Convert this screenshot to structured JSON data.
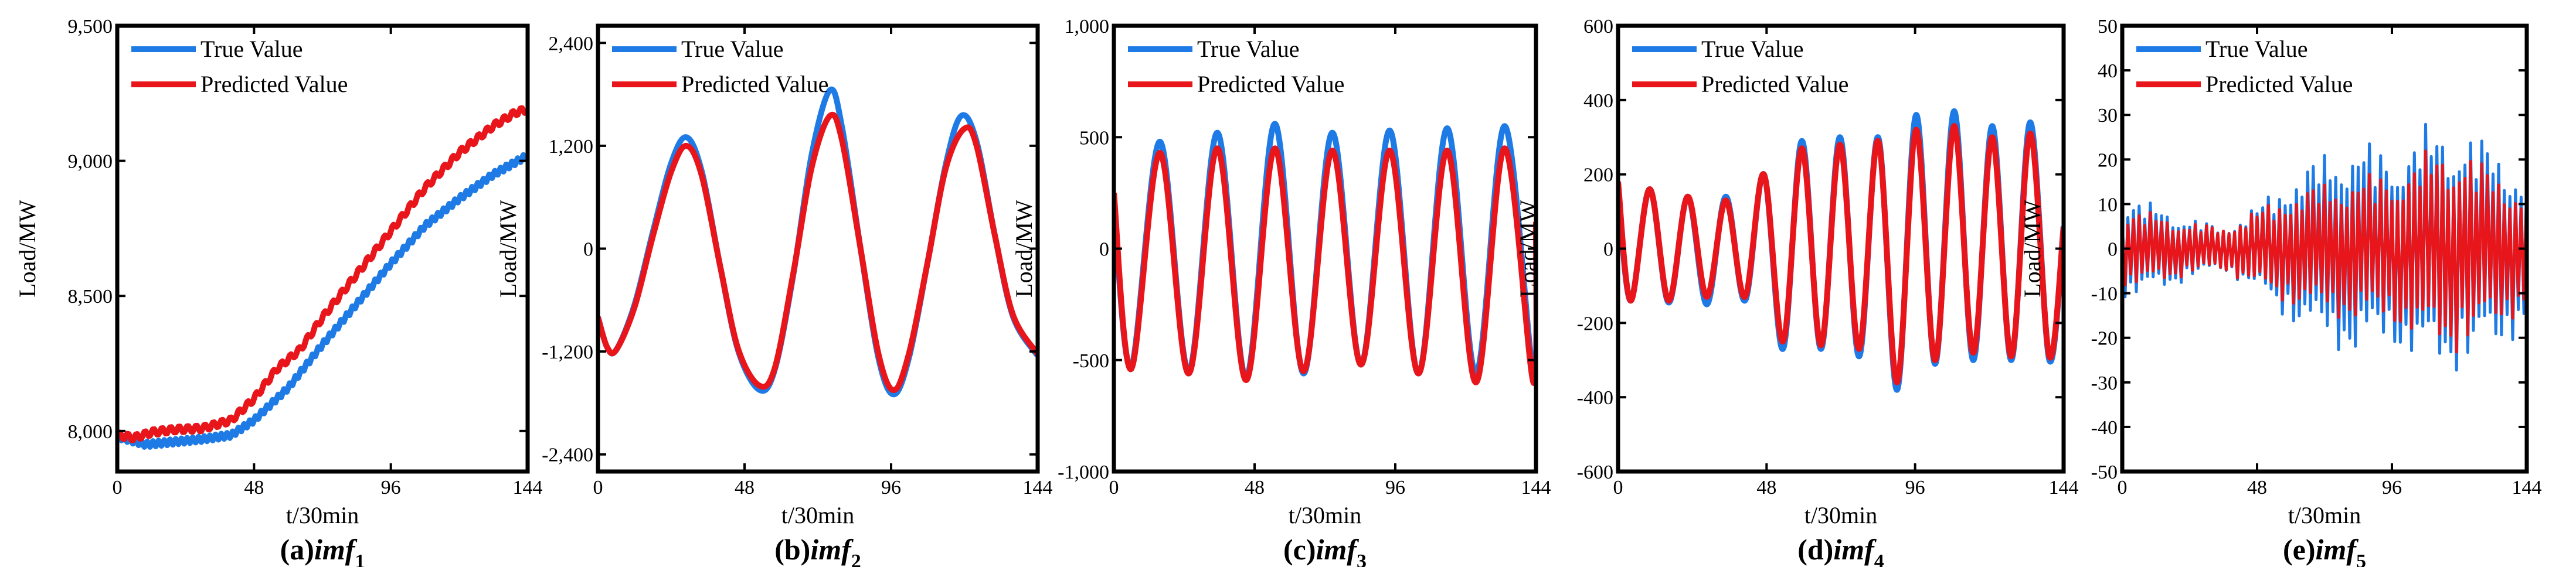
{
  "figure": {
    "legend": {
      "true_label": "True Value",
      "pred_label": "Predicted Value"
    },
    "colors": {
      "true": "#1E7BE6",
      "pred": "#E8151B",
      "axis": "#000000"
    }
  },
  "chart_data": [
    {
      "type": "line",
      "caption": {
        "prefix": "(a)",
        "name": "imf",
        "sub": "1"
      },
      "xlabel": "t/30min",
      "ylabel": "Load/MW",
      "xlim": [
        0,
        144
      ],
      "ylim": [
        7850,
        9500
      ],
      "xticks": [
        0,
        48,
        96,
        144
      ],
      "yticks": [
        8000,
        8500,
        9000,
        9500
      ],
      "ytick_labels": [
        "8,000",
        "8,500",
        "9,000",
        "9,500"
      ],
      "legend_position": "top-left",
      "series": [
        {
          "name": "True Value",
          "kind": "trend",
          "anchors": [
            [
              0,
              7980
            ],
            [
              5,
              7965
            ],
            [
              10,
              7950
            ],
            [
              20,
              7960
            ],
            [
              30,
              7970
            ],
            [
              40,
              7985
            ],
            [
              48,
              8040
            ],
            [
              60,
              8160
            ],
            [
              72,
              8320
            ],
            [
              84,
              8470
            ],
            [
              96,
              8620
            ],
            [
              108,
              8760
            ],
            [
              120,
              8860
            ],
            [
              132,
              8950
            ],
            [
              144,
              9020
            ]
          ],
          "ripple_amp": 10,
          "ripple_period": 2
        },
        {
          "name": "Predicted Value",
          "kind": "trend",
          "anchors": [
            [
              0,
              7985
            ],
            [
              6,
              7975
            ],
            [
              12,
              7995
            ],
            [
              20,
              8005
            ],
            [
              30,
              8010
            ],
            [
              40,
              8040
            ],
            [
              48,
              8120
            ],
            [
              56,
              8230
            ],
            [
              64,
              8300
            ],
            [
              72,
              8420
            ],
            [
              84,
              8580
            ],
            [
              96,
              8740
            ],
            [
              108,
              8900
            ],
            [
              120,
              9030
            ],
            [
              132,
              9130
            ],
            [
              140,
              9180
            ],
            [
              144,
              9190
            ]
          ],
          "ripple_amp": 12,
          "ripple_period": 3
        }
      ]
    },
    {
      "type": "line",
      "caption": {
        "prefix": "(b)",
        "name": "imf",
        "sub": "2"
      },
      "xlabel": "t/30min",
      "ylabel": "Load/MW",
      "xlim": [
        0,
        144
      ],
      "ylim": [
        -2600,
        2600
      ],
      "xticks": [
        0,
        48,
        96,
        144
      ],
      "yticks": [
        -2400,
        -1200,
        0,
        1200,
        2400
      ],
      "ytick_labels": [
        "-2,400",
        "-1,200",
        "0",
        "1,200",
        "2,400"
      ],
      "legend_position": "top-left",
      "series": [
        {
          "name": "True Value",
          "kind": "points",
          "points": [
            [
              0,
              -800
            ],
            [
              3,
              -1150
            ],
            [
              6,
              -1180
            ],
            [
              12,
              -650
            ],
            [
              18,
              200
            ],
            [
              24,
              1000
            ],
            [
              29,
              1300
            ],
            [
              34,
              900
            ],
            [
              40,
              -200
            ],
            [
              46,
              -1200
            ],
            [
              53,
              -1650
            ],
            [
              58,
              -1400
            ],
            [
              64,
              -300
            ],
            [
              70,
              1100
            ],
            [
              76,
              1850
            ],
            [
              80,
              1400
            ],
            [
              86,
              0
            ],
            [
              92,
              -1300
            ],
            [
              97,
              -1700
            ],
            [
              102,
              -1250
            ],
            [
              108,
              -150
            ],
            [
              114,
              1000
            ],
            [
              119,
              1550
            ],
            [
              124,
              1250
            ],
            [
              130,
              150
            ],
            [
              136,
              -800
            ],
            [
              144,
              -1250
            ]
          ]
        },
        {
          "name": "Predicted Value",
          "kind": "points",
          "points": [
            [
              0,
              -800
            ],
            [
              3,
              -1150
            ],
            [
              6,
              -1180
            ],
            [
              12,
              -680
            ],
            [
              18,
              150
            ],
            [
              24,
              900
            ],
            [
              29,
              1200
            ],
            [
              34,
              850
            ],
            [
              40,
              -200
            ],
            [
              46,
              -1180
            ],
            [
              53,
              -1600
            ],
            [
              58,
              -1380
            ],
            [
              64,
              -280
            ],
            [
              70,
              950
            ],
            [
              76,
              1550
            ],
            [
              80,
              1250
            ],
            [
              86,
              0
            ],
            [
              92,
              -1250
            ],
            [
              97,
              -1650
            ],
            [
              102,
              -1200
            ],
            [
              108,
              -150
            ],
            [
              114,
              950
            ],
            [
              120,
              1400
            ],
            [
              124,
              1200
            ],
            [
              130,
              150
            ],
            [
              136,
              -780
            ],
            [
              144,
              -1230
            ]
          ]
        }
      ]
    },
    {
      "type": "line",
      "caption": {
        "prefix": "(c)",
        "name": "imf",
        "sub": "3"
      },
      "xlabel": "t/30min",
      "ylabel": "Load/MW",
      "xlim": [
        0,
        144
      ],
      "ylim": [
        -1000,
        1000
      ],
      "xticks": [
        0,
        48,
        96,
        144
      ],
      "yticks": [
        -1000,
        -500,
        0,
        500,
        1000
      ],
      "ytick_labels": [
        "-1,000",
        "-500",
        "0",
        "500",
        "1,000"
      ],
      "legend_position": "top-left",
      "series": [
        {
          "name": "True Value",
          "kind": "oscillation",
          "period": 19.6,
          "phase": -1.2,
          "start": 200,
          "peaks": [
            480,
            520,
            560,
            520,
            530,
            540,
            550
          ],
          "troughs": [
            -530,
            -550,
            -580,
            -560,
            -520,
            -560,
            -560
          ],
          "x_start": 1
        },
        {
          "name": "Predicted Value",
          "kind": "oscillation",
          "period": 19.6,
          "phase": -1.2,
          "start": 250,
          "peaks": [
            430,
            450,
            450,
            440,
            440,
            440,
            450
          ],
          "troughs": [
            -540,
            -560,
            -590,
            -550,
            -520,
            -560,
            -600
          ],
          "x_start": 1
        }
      ]
    },
    {
      "type": "line",
      "caption": {
        "prefix": "(d)",
        "name": "imf",
        "sub": "4"
      },
      "xlabel": "t/30min",
      "ylabel": "Load/MW",
      "xlim": [
        0,
        144
      ],
      "ylim": [
        -600,
        600
      ],
      "xticks": [
        0,
        48,
        96,
        144
      ],
      "yticks": [
        -600,
        -400,
        -200,
        0,
        200,
        400,
        600
      ],
      "ytick_labels": [
        "-600",
        "-400",
        "-200",
        "0",
        "200",
        "400",
        "600"
      ],
      "legend_position": "top-left",
      "series": [
        {
          "name": "True Value",
          "kind": "oscillation",
          "period": 12.3,
          "phase": 0,
          "start": 160,
          "peaks": [
            160,
            140,
            140,
            200,
            290,
            300,
            300,
            360,
            370,
            330,
            340,
            330
          ],
          "troughs": [
            -140,
            -145,
            -150,
            -140,
            -270,
            -270,
            -290,
            -380,
            -310,
            -300,
            -300,
            -300
          ],
          "x_start": 1
        },
        {
          "name": "Predicted Value",
          "kind": "oscillation",
          "period": 12.3,
          "phase": 0,
          "start": 180,
          "peaks": [
            160,
            140,
            130,
            200,
            270,
            280,
            290,
            320,
            330,
            300,
            310,
            300
          ],
          "troughs": [
            -140,
            -140,
            -130,
            -130,
            -250,
            -260,
            -270,
            -360,
            -300,
            -280,
            -290,
            -290
          ],
          "x_start": 1
        }
      ]
    },
    {
      "type": "line",
      "caption": {
        "prefix": "(e)",
        "name": "imf",
        "sub": "5"
      },
      "xlabel": "t/30min",
      "ylabel": "Load/MW",
      "xlim": [
        0,
        144
      ],
      "ylim": [
        -50,
        50
      ],
      "xticks": [
        0,
        48,
        96,
        144
      ],
      "yticks": [
        -50,
        -40,
        -30,
        -20,
        -10,
        0,
        10,
        20,
        30,
        40,
        50
      ],
      "ytick_labels": [
        "-50",
        "-40",
        "-30",
        "-20",
        "-10",
        "0",
        "10",
        "20",
        "30",
        "40",
        "50"
      ],
      "legend_position": "top-left",
      "series": [
        {
          "name": "True Value",
          "kind": "noise",
          "envelope": [
            [
              0,
              12
            ],
            [
              12,
              10
            ],
            [
              24,
              7
            ],
            [
              36,
              5
            ],
            [
              48,
              10
            ],
            [
              60,
              17
            ],
            [
              72,
              22
            ],
            [
              84,
              25
            ],
            [
              96,
              22
            ],
            [
              108,
              28
            ],
            [
              120,
              28
            ],
            [
              132,
              24
            ],
            [
              144,
              18
            ]
          ],
          "step": 1
        },
        {
          "name": "Predicted Value",
          "kind": "noise",
          "envelope": [
            [
              0,
              9
            ],
            [
              12,
              8
            ],
            [
              24,
              6
            ],
            [
              36,
              5
            ],
            [
              48,
              9
            ],
            [
              60,
              13
            ],
            [
              72,
              15
            ],
            [
              84,
              17
            ],
            [
              96,
              17
            ],
            [
              108,
              22
            ],
            [
              120,
              24
            ],
            [
              132,
              18
            ],
            [
              144,
              14
            ]
          ],
          "step": 1
        }
      ]
    }
  ]
}
